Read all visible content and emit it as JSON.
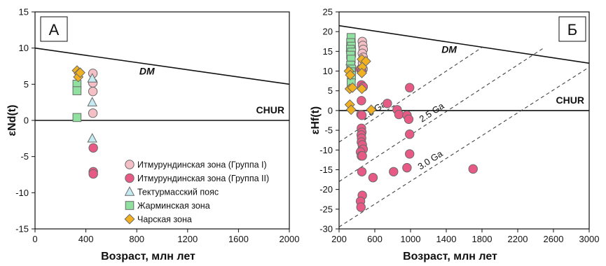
{
  "colors": {
    "group1_fill": "#f4c0c6",
    "group2_fill": "#e85a86",
    "tekturmas_fill": "#c4eaf2",
    "zharma_fill": "#90e0a0",
    "chara_fill": "#f0b020",
    "marker_stroke": "#6a6a6a",
    "line": "#111111",
    "dashed": "#444444"
  },
  "chart_data": [
    {
      "type": "scatter",
      "panel_label": "А",
      "xlabel": "Возраст, млн лет",
      "ylabel": "εNd(t)",
      "xlim": [
        0,
        2000
      ],
      "ylim": [
        -15,
        15
      ],
      "xticks": [
        0,
        400,
        800,
        1200,
        1600,
        2000
      ],
      "yticks": [
        -15,
        -10,
        -5,
        0,
        5,
        10,
        15
      ],
      "reference_lines": [
        {
          "label": "DM",
          "style": "solid",
          "points": [
            [
              0,
              10
            ],
            [
              2000,
              5
            ]
          ]
        },
        {
          "label": "CHUR",
          "style": "solid",
          "points": [
            [
              0,
              0
            ],
            [
              2000,
              0
            ]
          ]
        }
      ],
      "series": [
        {
          "name": "Итмурундинская зона (Группа I)",
          "marker": "circle",
          "fill_key": "group1_fill",
          "points": [
            [
              455,
              6.5
            ],
            [
              455,
              5.2
            ],
            [
              455,
              4.0
            ],
            [
              455,
              1.0
            ]
          ]
        },
        {
          "name": "Итмурундинская зона (Группа II)",
          "marker": "circle",
          "fill_key": "group2_fill",
          "points": [
            [
              458,
              -3.8
            ],
            [
              458,
              -7.1
            ],
            [
              458,
              -7.4
            ]
          ]
        },
        {
          "name": "Тектурмасский пояс",
          "marker": "triangle",
          "fill_key": "tekturmas_fill",
          "points": [
            [
              450,
              5.8
            ],
            [
              450,
              2.5
            ],
            [
              450,
              -2.5
            ]
          ]
        },
        {
          "name": "Жарминская зона",
          "marker": "square",
          "fill_key": "zharma_fill",
          "points": [
            [
              330,
              5.0
            ],
            [
              330,
              4.1
            ],
            [
              330,
              0.4
            ]
          ]
        },
        {
          "name": "Чарская зона",
          "marker": "diamond",
          "fill_key": "chara_fill",
          "points": [
            [
              330,
              6.9
            ],
            [
              345,
              6.5
            ],
            [
              340,
              6.0
            ],
            [
              355,
              6.6
            ]
          ]
        }
      ]
    },
    {
      "type": "scatter",
      "panel_label": "Б",
      "xlabel": "Возраст, млн лет",
      "ylabel": "εHf(t)",
      "xlim": [
        200,
        3000
      ],
      "ylim": [
        -30,
        25
      ],
      "xticks": [
        200,
        600,
        1000,
        1400,
        1800,
        2200,
        2600,
        3000
      ],
      "yticks": [
        -30,
        -25,
        -20,
        -15,
        -10,
        -5,
        0,
        5,
        10,
        15,
        20,
        25
      ],
      "reference_lines": [
        {
          "label": "DM",
          "style": "solid",
          "points": [
            [
              200,
              21.5
            ],
            [
              3000,
              12
            ]
          ]
        },
        {
          "label": "CHUR",
          "style": "solid",
          "points": [
            [
              200,
              0
            ],
            [
              3000,
              0
            ]
          ]
        },
        {
          "label": "1.8 Ga",
          "style": "dashed",
          "points": [
            [
              200,
              -8
            ],
            [
              1800,
              16
            ]
          ]
        },
        {
          "label": "2.5 Ga",
          "style": "dashed",
          "points": [
            [
              200,
              -18
            ],
            [
              2500,
              16
            ]
          ]
        },
        {
          "label": "3.0 Ga",
          "style": "dashed",
          "points": [
            [
              200,
              -29.5
            ],
            [
              3000,
              11
            ]
          ]
        }
      ],
      "series": [
        {
          "name": "Итмурундинская зона (Группа I)",
          "marker": "circle",
          "fill_key": "group1_fill",
          "points": [
            [
              460,
              17.5
            ],
            [
              465,
              16.5
            ],
            [
              470,
              15.5
            ],
            [
              460,
              14.5
            ],
            [
              470,
              13.5
            ],
            [
              462,
              12.0
            ],
            [
              468,
              10.5
            ]
          ]
        },
        {
          "name": "Итмурундинская зона (Группа II)",
          "marker": "circle",
          "fill_key": "group2_fill",
          "points": [
            [
              440,
              10.5
            ],
            [
              455,
              10.0
            ],
            [
              450,
              6.5
            ],
            [
              470,
              6.0
            ],
            [
              450,
              2.5
            ],
            [
              445,
              -1.0
            ],
            [
              455,
              -1.2
            ],
            [
              450,
              -4.5
            ],
            [
              455,
              -5.5
            ],
            [
              448,
              -6.2
            ],
            [
              452,
              -7.0
            ],
            [
              450,
              -8.0
            ],
            [
              460,
              -8.7
            ],
            [
              455,
              -10.0
            ],
            [
              470,
              -9.8
            ],
            [
              440,
              -10.5
            ],
            [
              450,
              -11.5
            ],
            [
              460,
              -11.5
            ],
            [
              455,
              -15.5
            ],
            [
              460,
              -21.5
            ],
            [
              440,
              -23.0
            ],
            [
              445,
              -24.5
            ],
            [
              740,
              1.8
            ],
            [
              850,
              0.2
            ],
            [
              870,
              -1.0
            ],
            [
              960,
              -1.2
            ],
            [
              980,
              -2.2
            ],
            [
              990,
              5.8
            ],
            [
              990,
              -6.0
            ],
            [
              990,
              -11.0
            ],
            [
              960,
              -14.5
            ],
            [
              810,
              -15.5
            ],
            [
              580,
              -17.0
            ],
            [
              1700,
              -14.8
            ]
          ]
        },
        {
          "name": "Тектурмасский пояс",
          "marker": "triangle",
          "fill_key": "tekturmas_fill",
          "points": [
            [
              330,
              16.0
            ],
            [
              335,
              14.5
            ],
            [
              328,
              12.5
            ]
          ]
        },
        {
          "name": "Жарминская зона",
          "marker": "square",
          "fill_key": "zharma_fill",
          "points": [
            [
              335,
              18.5
            ],
            [
              330,
              17.2
            ],
            [
              338,
              16.3
            ],
            [
              328,
              15.5
            ],
            [
              340,
              14.8
            ],
            [
              330,
              14.0
            ],
            [
              335,
              13.0
            ],
            [
              330,
              11.5
            ],
            [
              340,
              10.5
            ],
            [
              335,
              9.8
            ],
            [
              338,
              8.8
            ],
            [
              336,
              7.0
            ]
          ]
        },
        {
          "name": "Чарская зона",
          "marker": "diamond",
          "fill_key": "chara_fill",
          "points": [
            [
              310,
              10.0
            ],
            [
              325,
              9.0
            ],
            [
              320,
              5.5
            ],
            [
              350,
              5.8
            ],
            [
              320,
              1.5
            ],
            [
              335,
              0.2
            ],
            [
              455,
              13.0
            ],
            [
              500,
              12.5
            ],
            [
              460,
              11.0
            ],
            [
              455,
              9.5
            ],
            [
              455,
              5.5
            ],
            [
              560,
              0.2
            ]
          ]
        }
      ]
    }
  ]
}
